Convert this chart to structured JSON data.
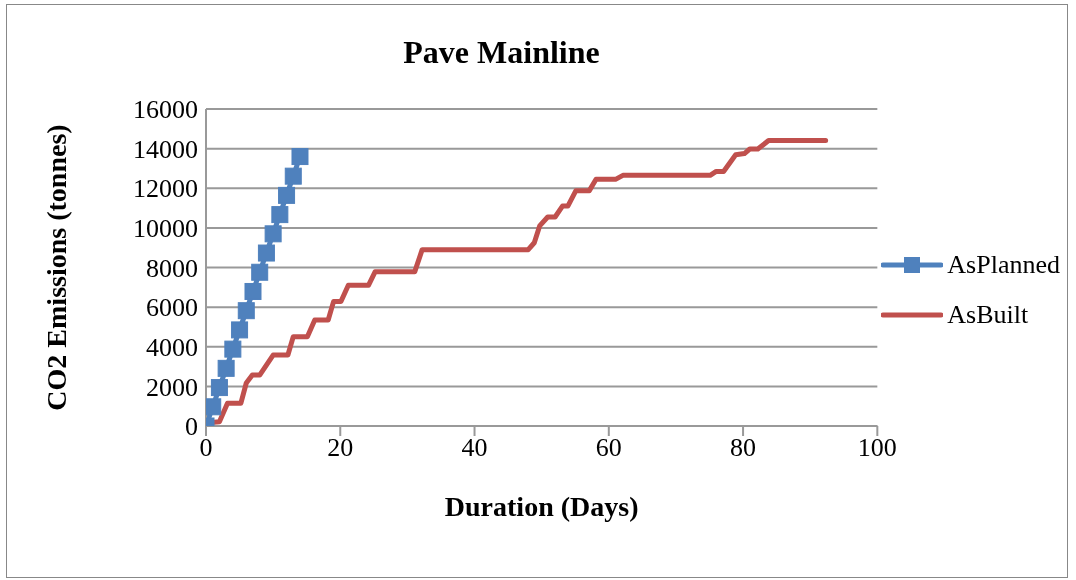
{
  "chart_data": {
    "type": "line",
    "title": "Pave Mainline",
    "xlabel": "Duration (Days)",
    "ylabel": "CO2 Emissions (tonnes)",
    "xlim": [
      0,
      100
    ],
    "xticks": [
      0,
      20,
      40,
      60,
      80,
      100
    ],
    "ylim": [
      0,
      16000
    ],
    "yticks": [
      0,
      2000,
      4000,
      6000,
      8000,
      10000,
      12000,
      14000,
      16000
    ],
    "grid": "y",
    "legend": "right",
    "series": [
      {
        "name": "AsPlanned",
        "color": "#4f81bd",
        "marker": "square",
        "x": [
          0,
          1,
          2,
          3,
          4,
          5,
          6,
          7,
          8,
          9,
          10,
          11,
          12,
          13,
          14
        ],
        "values": [
          0,
          970,
          1940,
          2910,
          3880,
          4850,
          5820,
          6790,
          7760,
          8730,
          9700,
          10670,
          11640,
          12610,
          13600
        ]
      },
      {
        "name": "AsBuilt",
        "color": "#c0504d",
        "marker": "none",
        "x": [
          0,
          2,
          3.2,
          5.2,
          6,
          6.9,
          8,
          10,
          12.2,
          13,
          15.1,
          16.2,
          18.2,
          19,
          20.1,
          21.2,
          24.2,
          25.2,
          31.1,
          32.2,
          48,
          48.9,
          49.7,
          50.9,
          52,
          53.1,
          53.9,
          55.1,
          57.1,
          58.1,
          61,
          62.1,
          75.1,
          76,
          77.1,
          78.9,
          80.2,
          81,
          82.2,
          83.8,
          92.3
        ],
        "values": [
          150,
          220,
          1150,
          1150,
          2170,
          2570,
          2570,
          3580,
          3580,
          4510,
          4510,
          5350,
          5350,
          6280,
          6280,
          7100,
          7100,
          7790,
          7790,
          8900,
          8900,
          9250,
          10100,
          10550,
          10550,
          11100,
          11100,
          11880,
          11880,
          12450,
          12450,
          12650,
          12650,
          12850,
          12850,
          13690,
          13750,
          13980,
          13980,
          14410,
          14410
        ]
      }
    ]
  }
}
